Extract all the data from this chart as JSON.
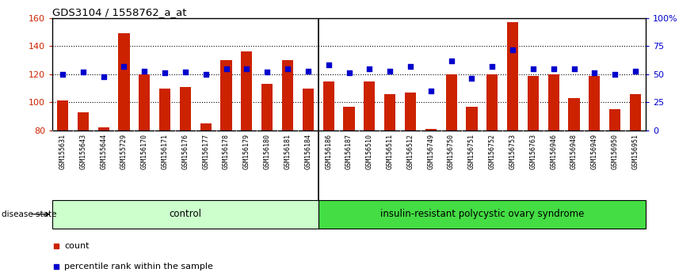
{
  "title": "GDS3104 / 1558762_a_at",
  "samples": [
    "GSM155631",
    "GSM155643",
    "GSM155644",
    "GSM155729",
    "GSM156170",
    "GSM156171",
    "GSM156176",
    "GSM156177",
    "GSM156178",
    "GSM156179",
    "GSM156180",
    "GSM156181",
    "GSM156184",
    "GSM156186",
    "GSM156187",
    "GSM156510",
    "GSM156511",
    "GSM156512",
    "GSM156749",
    "GSM156750",
    "GSM156751",
    "GSM156752",
    "GSM156753",
    "GSM156763",
    "GSM156946",
    "GSM156948",
    "GSM156949",
    "GSM156950",
    "GSM156951"
  ],
  "bar_values": [
    101,
    93,
    82,
    149,
    120,
    110,
    111,
    85,
    130,
    136,
    113,
    130,
    110,
    115,
    97,
    115,
    106,
    107,
    81,
    120,
    97,
    120,
    157,
    119,
    120,
    103,
    119,
    95,
    106
  ],
  "percentile_values": [
    50,
    52,
    48,
    57,
    53,
    51,
    52,
    50,
    55,
    55,
    52,
    55,
    53,
    58,
    51,
    55,
    53,
    57,
    35,
    62,
    46,
    57,
    72,
    55,
    55,
    55,
    51,
    50,
    53
  ],
  "n_control": 13,
  "ylim_left": [
    80,
    160
  ],
  "ylim_right": [
    0,
    100
  ],
  "yticks_left": [
    80,
    100,
    120,
    140,
    160
  ],
  "yticks_right": [
    0,
    25,
    50,
    75,
    100
  ],
  "ytick_labels_right": [
    "0",
    "25",
    "50",
    "75",
    "100%"
  ],
  "bar_color": "#cc2200",
  "scatter_color": "#0000cc",
  "control_label": "control",
  "disease_label": "insulin-resistant polycystic ovary syndrome",
  "control_bg": "#ccffcc",
  "disease_bg": "#44dd44",
  "legend_count_label": "count",
  "legend_pct_label": "percentile rank within the sample",
  "bar_color_legend": "#cc0000",
  "scatter_color_legend": "#0000cc"
}
